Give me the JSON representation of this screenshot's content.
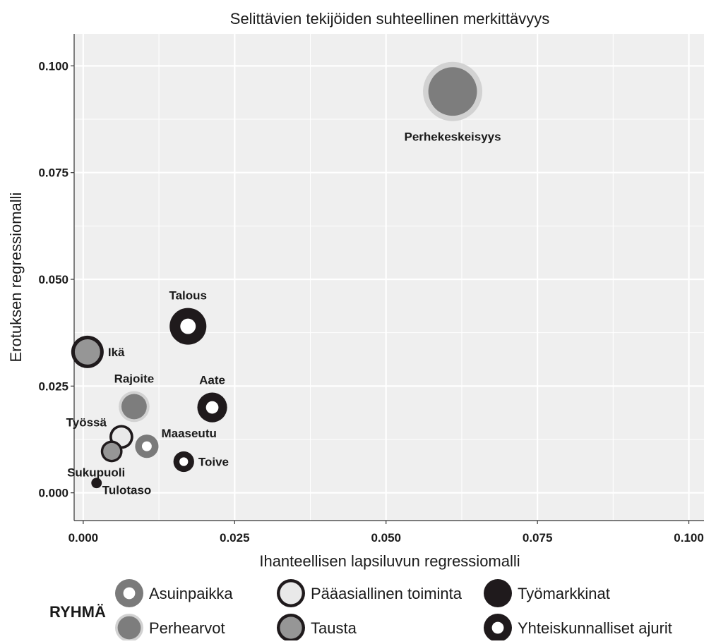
{
  "chart_data": {
    "type": "scatter",
    "title": "Selittävien tekijöiden suhteellinen merkittävyys",
    "xlabel": "Ihanteellisen lapsiluvun regressiomalli",
    "ylabel": "Erotuksen regressiomalli",
    "xlim": [
      -0.0015,
      0.1025
    ],
    "ylim": [
      -0.0065,
      0.1075
    ],
    "x_ticks": [
      0.0,
      0.025,
      0.05,
      0.075,
      0.1
    ],
    "x_tick_labels": [
      "0.000",
      "0.025",
      "0.050",
      "0.075",
      "0.100"
    ],
    "y_ticks": [
      0.0,
      0.025,
      0.05,
      0.075,
      0.1
    ],
    "y_tick_labels": [
      "0.000",
      "0.025",
      "0.050",
      "0.075",
      "0.100"
    ],
    "grid": true,
    "background": "#efefef",
    "legend_position": "bottom",
    "legend_title": "RYHMÄ",
    "groups": [
      {
        "name": "Asuinpaikka",
        "outer": "#7a7a7a",
        "inner": "#ffffff"
      },
      {
        "name": "Pääasiallinen toiminta",
        "outer": "#1f1a1c",
        "inner": "#e9e9e9"
      },
      {
        "name": "Työmarkkinat",
        "outer": "#1f1a1c",
        "inner": "#1f1a1c"
      },
      {
        "name": "Perhearvot",
        "outer": "#d2d2d2",
        "inner": "#7d7d7d"
      },
      {
        "name": "Tausta",
        "outer": "#1f1a1c",
        "inner": "#969696"
      },
      {
        "name": "Yhteiskunnalliset ajurit",
        "outer": "#1f1a1c",
        "inner": "#ffffff"
      }
    ],
    "points": [
      {
        "label": "Perhekeskeisyys",
        "x": 0.061,
        "y": 0.094,
        "group": "Perhearvot",
        "size": 1.0
      },
      {
        "label": "Talous",
        "x": 0.0173,
        "y": 0.039,
        "group": "Yhteiskunnalliset ajurit",
        "size": 0.58
      },
      {
        "label": "Ikä",
        "x": 0.0007,
        "y": 0.033,
        "group": "Tausta",
        "size": 0.5
      },
      {
        "label": "Rajoite",
        "x": 0.0084,
        "y": 0.0202,
        "group": "Perhearvot",
        "size": 0.47
      },
      {
        "label": "Aate",
        "x": 0.0213,
        "y": 0.02,
        "group": "Yhteiskunnalliset ajurit",
        "size": 0.45
      },
      {
        "label": "Työssä",
        "x": 0.0063,
        "y": 0.0131,
        "group": "Pääasiallinen toiminta",
        "size": 0.34
      },
      {
        "label": "Maaseutu",
        "x": 0.0105,
        "y": 0.0109,
        "group": "Asuinpaikka",
        "size": 0.33
      },
      {
        "label": "Sukupuoli",
        "x": 0.0047,
        "y": 0.0097,
        "group": "Tausta",
        "size": 0.3
      },
      {
        "label": "Toive",
        "x": 0.0166,
        "y": 0.0073,
        "group": "Yhteiskunnalliset ajurit",
        "size": 0.28
      },
      {
        "label": "Tulotaso",
        "x": 0.0022,
        "y": 0.0023,
        "group": "Työmarkkinat",
        "size": 0.09
      }
    ]
  }
}
